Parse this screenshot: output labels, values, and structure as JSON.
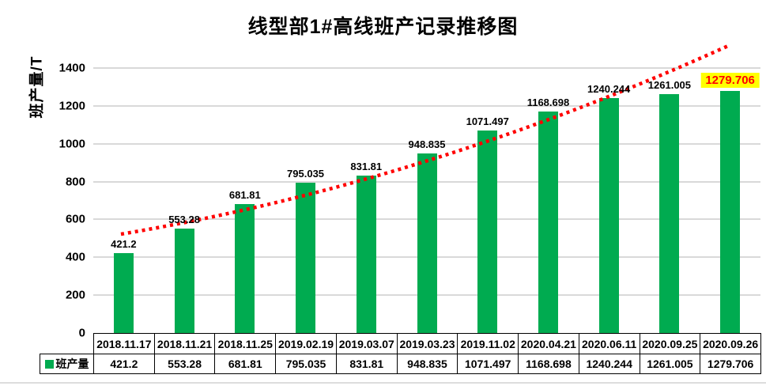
{
  "chart_data": {
    "type": "bar",
    "title": "线型部1#高线班产记录推移图",
    "ylabel": "班产量/T",
    "xlabel": "",
    "legend": [
      "班产量"
    ],
    "legend_position": "data-table-left",
    "grid": true,
    "categories": [
      "2018.11.17",
      "2018.11.21",
      "2018.11.25",
      "2019.02.19",
      "2019.03.07",
      "2019.03.23",
      "2019.11.02",
      "2020.04.21",
      "2020.06.11",
      "2020.09.25",
      "2020.09.26"
    ],
    "series": [
      {
        "name": "班产量",
        "values": [
          421.2,
          553.28,
          681.81,
          795.035,
          831.81,
          948.835,
          1071.497,
          1168.698,
          1240.244,
          1261.005,
          1279.706
        ]
      }
    ],
    "value_labels": [
      "421.2",
      "553.28",
      "681.81",
      "795.035",
      "831.81",
      "948.835",
      "1071.497",
      "1168.698",
      "1240.244",
      "1261.005",
      "1279.706"
    ],
    "highlight_index": 10,
    "yticks": [
      0,
      200,
      400,
      600,
      800,
      1000,
      1200,
      1400
    ],
    "ylim": [
      0,
      1500
    ],
    "trendline": {
      "style": "dotted",
      "shape": "rising curve from first bar to last bar"
    },
    "colors": {
      "bar": "#00AB50",
      "trend": "#FF0000",
      "highlight_bg": "#FFFF00",
      "highlight_text": "#FF0000",
      "gridline": "#D9D9D9",
      "table_border": "#000000",
      "text": "#000000"
    }
  }
}
